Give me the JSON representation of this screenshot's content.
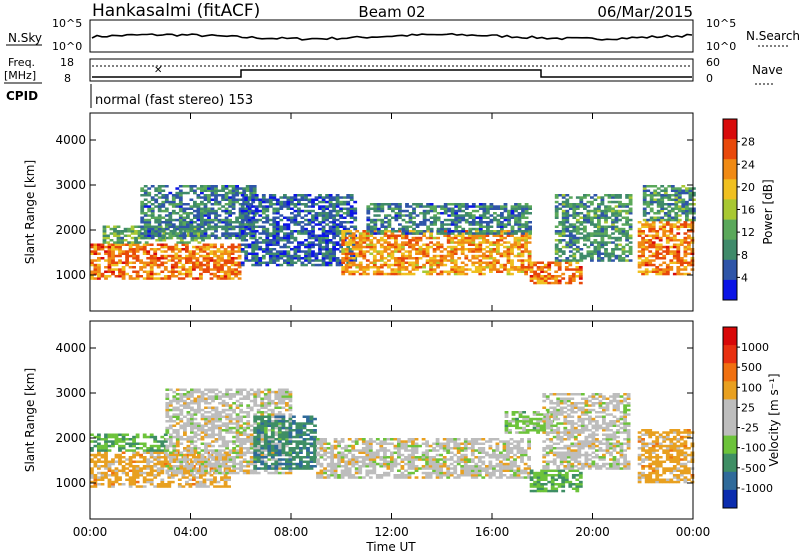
{
  "header": {
    "station": "Hankasalmi (fitACF)",
    "beam": "Beam 02",
    "date": "06/Mar/2015"
  },
  "top_panels": {
    "nsky_label": "N.Sky",
    "nsearch_label": "N.Search",
    "nsky_ticks": [
      "10^5",
      "10^0"
    ],
    "nsearch_ticks": [
      "10^5",
      "10^0"
    ],
    "freq_label_1": "Freq.",
    "freq_label_2": "[MHz]",
    "freq_ticks": [
      "18",
      "8"
    ],
    "nave_label": "Nave",
    "nave_ticks": [
      "60",
      "0"
    ],
    "cpid_label": "CPID",
    "cpid_text": "normal (fast stereo) 153"
  },
  "colors": {
    "power_scale": [
      "#0b14e6",
      "#2f55a8",
      "#3f8a6a",
      "#5aa85a",
      "#a8c832",
      "#f0c020",
      "#f08a14",
      "#e8480a",
      "#d80a0a"
    ],
    "velocity_scale": [
      "#0b2cae",
      "#2f6a9a",
      "#3e8e64",
      "#6cc33a",
      "#bdbdbd",
      "#e8a020",
      "#f07010",
      "#e83010",
      "#d80808"
    ],
    "velocity_legend_blocks": [
      "#0b2cae",
      "#2f6a9a",
      "#3e8e64",
      "#6cc33a",
      "#bdbdbd",
      "#bdbdbd",
      "#e8a020",
      "#f07010",
      "#e83010",
      "#d80808"
    ]
  },
  "chart_data": [
    {
      "type": "heatmap",
      "name": "power",
      "ylabel": "Slant Range [km]",
      "yticks": [
        "1000",
        "2000",
        "3000",
        "4000"
      ],
      "ylim": [
        200,
        4600
      ],
      "xlim": [
        0,
        24
      ],
      "colorbar_label": "Power [dB]",
      "colorbar_ticks": [
        "28",
        "24",
        "20",
        "16",
        "12",
        "8",
        "4"
      ],
      "clim": [
        0,
        32
      ],
      "regions": [
        {
          "t0": 0.0,
          "t1": 6.0,
          "r0": 900,
          "r1": 1700,
          "level": 24
        },
        {
          "t0": 0.5,
          "t1": 4.5,
          "r0": 1700,
          "r1": 2100,
          "level": 12
        },
        {
          "t0": 2.0,
          "t1": 6.5,
          "r0": 1800,
          "r1": 3000,
          "level": 8
        },
        {
          "t0": 6.0,
          "t1": 10.5,
          "r0": 1200,
          "r1": 2800,
          "level": 6
        },
        {
          "t0": 10.0,
          "t1": 17.5,
          "r0": 1000,
          "r1": 2000,
          "level": 22
        },
        {
          "t0": 11.0,
          "t1": 17.5,
          "r0": 1900,
          "r1": 2600,
          "level": 8
        },
        {
          "t0": 17.5,
          "t1": 19.5,
          "r0": 800,
          "r1": 1300,
          "level": 24
        },
        {
          "t0": 18.5,
          "t1": 21.5,
          "r0": 1300,
          "r1": 2800,
          "level": 10
        },
        {
          "t0": 21.8,
          "t1": 24.0,
          "r0": 1000,
          "r1": 2200,
          "level": 24
        },
        {
          "t0": 22.0,
          "t1": 24.0,
          "r0": 2200,
          "r1": 3000,
          "level": 10
        }
      ]
    },
    {
      "type": "heatmap",
      "name": "velocity",
      "ylabel": "Slant Range [km]",
      "yticks": [
        "1000",
        "2000",
        "3000",
        "4000"
      ],
      "ylim": [
        200,
        4600
      ],
      "xlim": [
        0,
        24
      ],
      "xticks": [
        "00:00",
        "04:00",
        "08:00",
        "12:00",
        "16:00",
        "20:00",
        "00:00"
      ],
      "xlabel": "Time UT",
      "colorbar_label": "Velocity [m s⁻¹]",
      "colorbar_ticks": [
        "1000",
        "500",
        "100",
        "25",
        "-25",
        "-100",
        "-500",
        "-1000"
      ],
      "clim": [
        -1000,
        1000
      ],
      "regions": [
        {
          "t0": 0.0,
          "t1": 5.5,
          "r0": 900,
          "r1": 1700,
          "level": 200
        },
        {
          "t0": 0.0,
          "t1": 3.0,
          "r0": 1700,
          "r1": 2100,
          "level": -300
        },
        {
          "t0": 3.0,
          "t1": 8.0,
          "r0": 1200,
          "r1": 3100,
          "level": 0
        },
        {
          "t0": 6.5,
          "t1": 9.0,
          "r0": 1300,
          "r1": 2500,
          "level": -500
        },
        {
          "t0": 9.0,
          "t1": 17.5,
          "r0": 1100,
          "r1": 2000,
          "level": 0
        },
        {
          "t0": 16.5,
          "t1": 18.5,
          "r0": 2100,
          "r1": 2600,
          "level": -200
        },
        {
          "t0": 17.5,
          "t1": 19.5,
          "r0": 800,
          "r1": 1300,
          "level": -300
        },
        {
          "t0": 18.0,
          "t1": 21.5,
          "r0": 1300,
          "r1": 3000,
          "level": 0
        },
        {
          "t0": 21.8,
          "t1": 24.0,
          "r0": 1000,
          "r1": 2200,
          "level": 200
        }
      ]
    }
  ]
}
